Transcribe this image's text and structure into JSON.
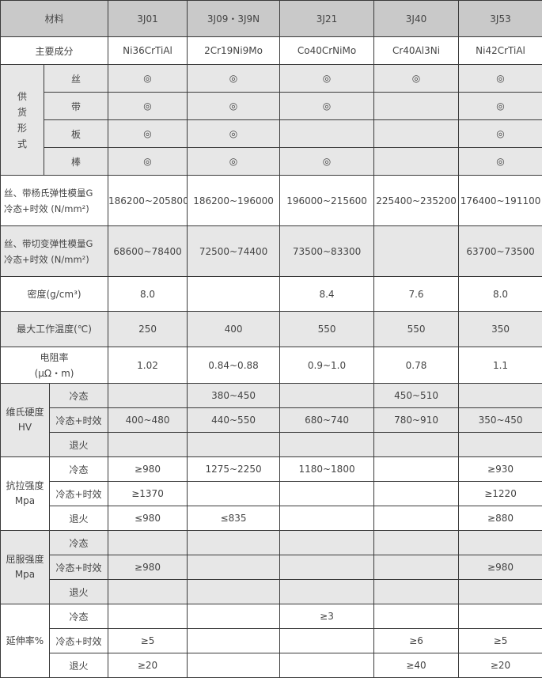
{
  "header": {
    "label": "材料",
    "grades": [
      "3J01",
      "3J09・3J9N",
      "3J21",
      "3J40",
      "3J53"
    ]
  },
  "composition": {
    "label": "主要成分",
    "values": [
      "Ni36CrTiAl",
      "2Cr19Ni9Mo",
      "Co40CrNiMo",
      "Cr40Al3Ni",
      "Ni42CrTiAl"
    ]
  },
  "supply": {
    "label": "供货形式",
    "mark_symbol": "◎",
    "rows": [
      {
        "label": "丝",
        "values": [
          "◎",
          "◎",
          "◎",
          "◎",
          "◎"
        ]
      },
      {
        "label": "带",
        "values": [
          "◎",
          "◎",
          "◎",
          "",
          "◎"
        ]
      },
      {
        "label": "板",
        "values": [
          "◎",
          "◎",
          "",
          "",
          "◎"
        ]
      },
      {
        "label": "棒",
        "values": [
          "◎",
          "◎",
          "◎",
          "",
          "◎"
        ]
      }
    ]
  },
  "single_rows": [
    {
      "label_lines": [
        "丝、带杨氏弹性模量G",
        "冷态+时效 (N/mm²)"
      ],
      "values": [
        "186200~205800",
        "186200~196000",
        "196000~215600",
        "225400~235200",
        "176400~191100"
      ],
      "shade": "white"
    },
    {
      "label_lines": [
        "丝、带切变弹性模量G",
        "冷态+时效 (N/mm²)"
      ],
      "values": [
        "68600~78400",
        "72500~74400",
        "73500~83300",
        "",
        "63700~73500"
      ],
      "shade": "gray"
    },
    {
      "label_lines": [
        "密度(g/cm³)"
      ],
      "values": [
        "8.0",
        "",
        "8.4",
        "7.6",
        "8.0"
      ],
      "shade": "white"
    },
    {
      "label_lines": [
        "最大工作温度(℃)"
      ],
      "values": [
        "250",
        "400",
        "550",
        "550",
        "350"
      ],
      "shade": "gray"
    },
    {
      "label_lines": [
        "电阻率",
        "(μΩ・m)"
      ],
      "values": [
        "1.02",
        "0.84~0.88",
        "0.9~1.0",
        "0.78",
        "1.1"
      ],
      "shade": "white"
    }
  ],
  "groups": [
    {
      "label": "维氏硬度HV",
      "shade": "gray",
      "rows": [
        {
          "label": "冷态",
          "values": [
            "",
            "380~450",
            "",
            "450~510",
            ""
          ]
        },
        {
          "label": "冷态+时效",
          "values": [
            "400~480",
            "440~550",
            "680~740",
            "780~910",
            "350~450"
          ]
        },
        {
          "label": "退火",
          "values": [
            "",
            "",
            "",
            "",
            ""
          ]
        }
      ]
    },
    {
      "label": "抗拉强度Mpa",
      "shade": "white",
      "rows": [
        {
          "label": "冷态",
          "values": [
            "≥980",
            "1275~2250",
            "1180~1800",
            "",
            "≥930"
          ]
        },
        {
          "label": "冷态+时效",
          "values": [
            "≥1370",
            "",
            "",
            "",
            "≥1220"
          ]
        },
        {
          "label": "退火",
          "values": [
            "≤980",
            "≤835",
            "",
            "",
            "≥880"
          ]
        }
      ]
    },
    {
      "label": "屈服强度Mpa",
      "shade": "gray",
      "rows": [
        {
          "label": "冷态",
          "values": [
            "",
            "",
            "",
            "",
            ""
          ]
        },
        {
          "label": "冷态+时效",
          "values": [
            "≥980",
            "",
            "",
            "",
            "≥980"
          ]
        },
        {
          "label": "退火",
          "values": [
            "",
            "",
            "",
            "",
            ""
          ]
        }
      ]
    },
    {
      "label": "延伸率%",
      "shade": "white",
      "rows": [
        {
          "label": "冷态",
          "values": [
            "",
            "",
            "≥3",
            "",
            ""
          ]
        },
        {
          "label": "冷态+时效",
          "values": [
            "≥5",
            "",
            "",
            "≥6",
            "≥5"
          ]
        },
        {
          "label": "退火",
          "values": [
            "≥20",
            "",
            "",
            "≥40",
            "≥20"
          ]
        }
      ]
    }
  ],
  "colors": {
    "header_bg": "#c9c9c9",
    "gray_row_bg": "#e7e7e7",
    "border": "#3a3a3a",
    "text": "#444444"
  }
}
